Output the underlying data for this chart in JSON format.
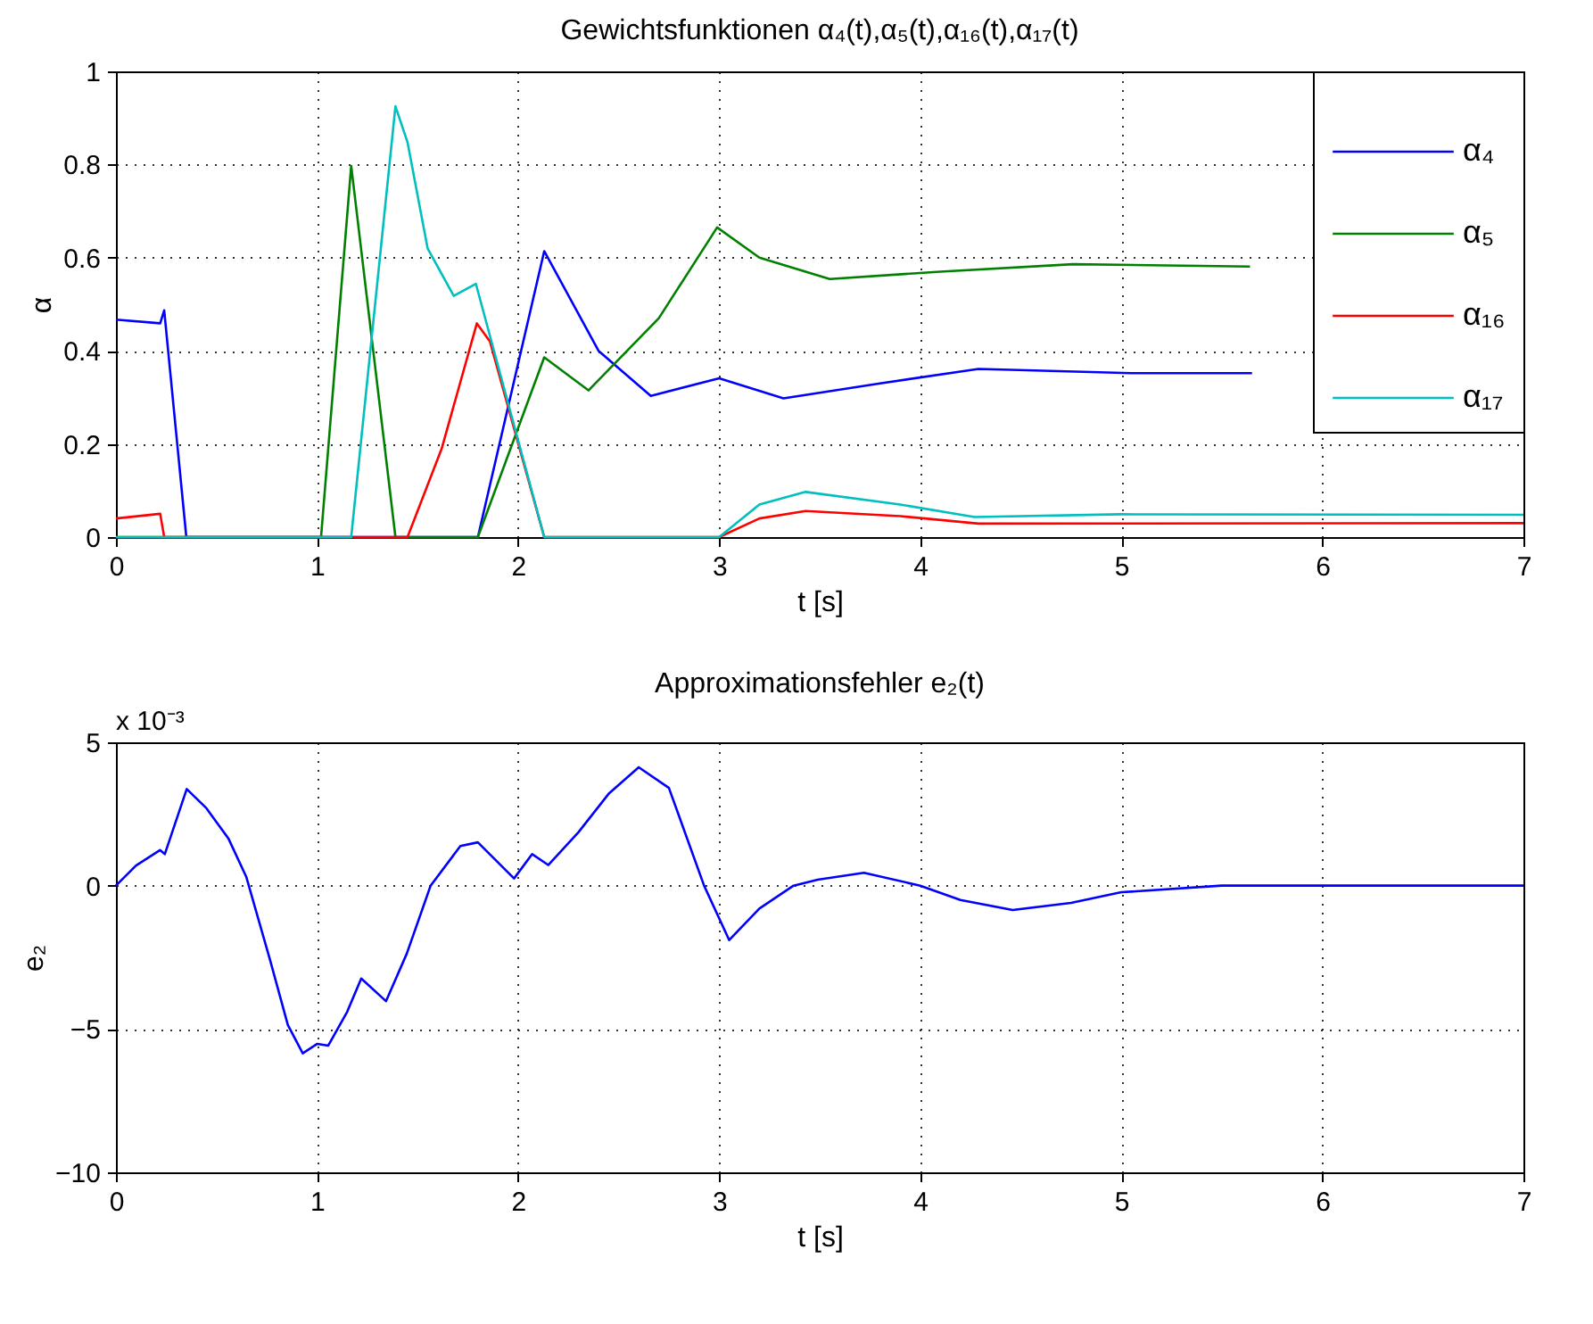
{
  "chart_data": [
    {
      "type": "line",
      "title": "Gewichtsfunktionen α₄(t),α₅(t),α₁₆(t),α₁₇(t)",
      "xlabel": "t [s]",
      "ylabel": "α",
      "xlim": [
        0,
        7
      ],
      "xticks": [
        0,
        1,
        2,
        3,
        4,
        5,
        6,
        7
      ],
      "ylim": [
        0,
        1
      ],
      "yticks": [
        0,
        0.2,
        0.4,
        0.6,
        0.8,
        1
      ],
      "grid": true,
      "legend": "top right",
      "series": [
        {
          "name": "α₄",
          "color": "#0000ff",
          "x": [
            0,
            0.22,
            0.24,
            0.35,
            1.8,
            2.13,
            2.4,
            2.66,
            3.0,
            3.32,
            3.8,
            4.29,
            5.05,
            5.65
          ],
          "values": [
            0.467,
            0.459,
            0.487,
            0,
            0,
            0.614,
            0.4,
            0.303,
            0.341,
            0.298,
            0.33,
            0.361,
            0.352,
            0.352
          ]
        },
        {
          "name": "α₅",
          "color": "#008000",
          "x": [
            0,
            1.02,
            1.17,
            1.39,
            1.8,
            2.13,
            2.35,
            2.7,
            2.99,
            3.2,
            3.55,
            4.1,
            4.76,
            5.64
          ],
          "values": [
            0,
            0,
            0.797,
            0,
            0,
            0.386,
            0.315,
            0.47,
            0.665,
            0.6,
            0.554,
            0.57,
            0.586,
            0.581
          ]
        },
        {
          "name": "α₁₆",
          "color": "#ff0000",
          "x": [
            0,
            0.22,
            0.24,
            1.45,
            1.62,
            1.795,
            1.86,
            2.13,
            3.0,
            3.2,
            3.43,
            3.9,
            4.29,
            7
          ],
          "values": [
            0.04,
            0.05,
            0,
            0,
            0.19,
            0.459,
            0.42,
            0,
            0,
            0.04,
            0.056,
            0.045,
            0.029,
            0.03
          ]
        },
        {
          "name": "α₁₇",
          "color": "#00bfbf",
          "x": [
            0,
            1.17,
            1.39,
            1.45,
            1.55,
            1.68,
            1.79,
            2.13,
            3.0,
            3.2,
            3.43,
            3.9,
            4.27,
            5,
            7
          ],
          "values": [
            0,
            0,
            0.925,
            0.848,
            0.62,
            0.518,
            0.544,
            0,
            0,
            0.07,
            0.097,
            0.07,
            0.043,
            0.049,
            0.048
          ]
        }
      ]
    },
    {
      "type": "line",
      "title": "Approximationsfehler e₂(t)",
      "xlabel": "t [s]",
      "ylabel": "e₂",
      "annotations": [
        "x 10⁻³"
      ],
      "xlim": [
        0,
        7
      ],
      "xticks": [
        0,
        1,
        2,
        3,
        4,
        5,
        6,
        7
      ],
      "ylim": [
        -10,
        5
      ],
      "yticks": [
        -10,
        -5,
        0,
        5
      ],
      "grid": true,
      "series": [
        {
          "color": "#0000ff",
          "x": [
            0,
            0.1,
            0.219,
            0.243,
            0.352,
            0.45,
            0.559,
            0.648,
            0.766,
            0.855,
            0.929,
            1.0,
            1.056,
            1.15,
            1.22,
            1.343,
            1.446,
            1.565,
            1.713,
            1.8,
            1.98,
            2.07,
            2.15,
            2.3,
            2.45,
            2.6,
            2.75,
            2.925,
            3.05,
            3.2,
            3.37,
            3.49,
            3.72,
            4.0,
            4.2,
            4.46,
            4.75,
            5.0,
            5.5,
            5.95,
            6.5,
            7
          ],
          "values": [
            0,
            0.7,
            1.24,
            1.1,
            3.37,
            2.7,
            1.65,
            0.31,
            -2.58,
            -4.86,
            -5.85,
            -5.52,
            -5.58,
            -4.4,
            -3.24,
            -4.03,
            -2.38,
            0,
            1.38,
            1.51,
            0.25,
            1.1,
            0.72,
            1.86,
            3.2,
            4.13,
            3.41,
            0,
            -1.9,
            -0.8,
            0,
            0.21,
            0.45,
            0,
            -0.5,
            -0.85,
            -0.6,
            -0.23,
            0,
            0,
            0,
            0
          ]
        }
      ]
    }
  ]
}
